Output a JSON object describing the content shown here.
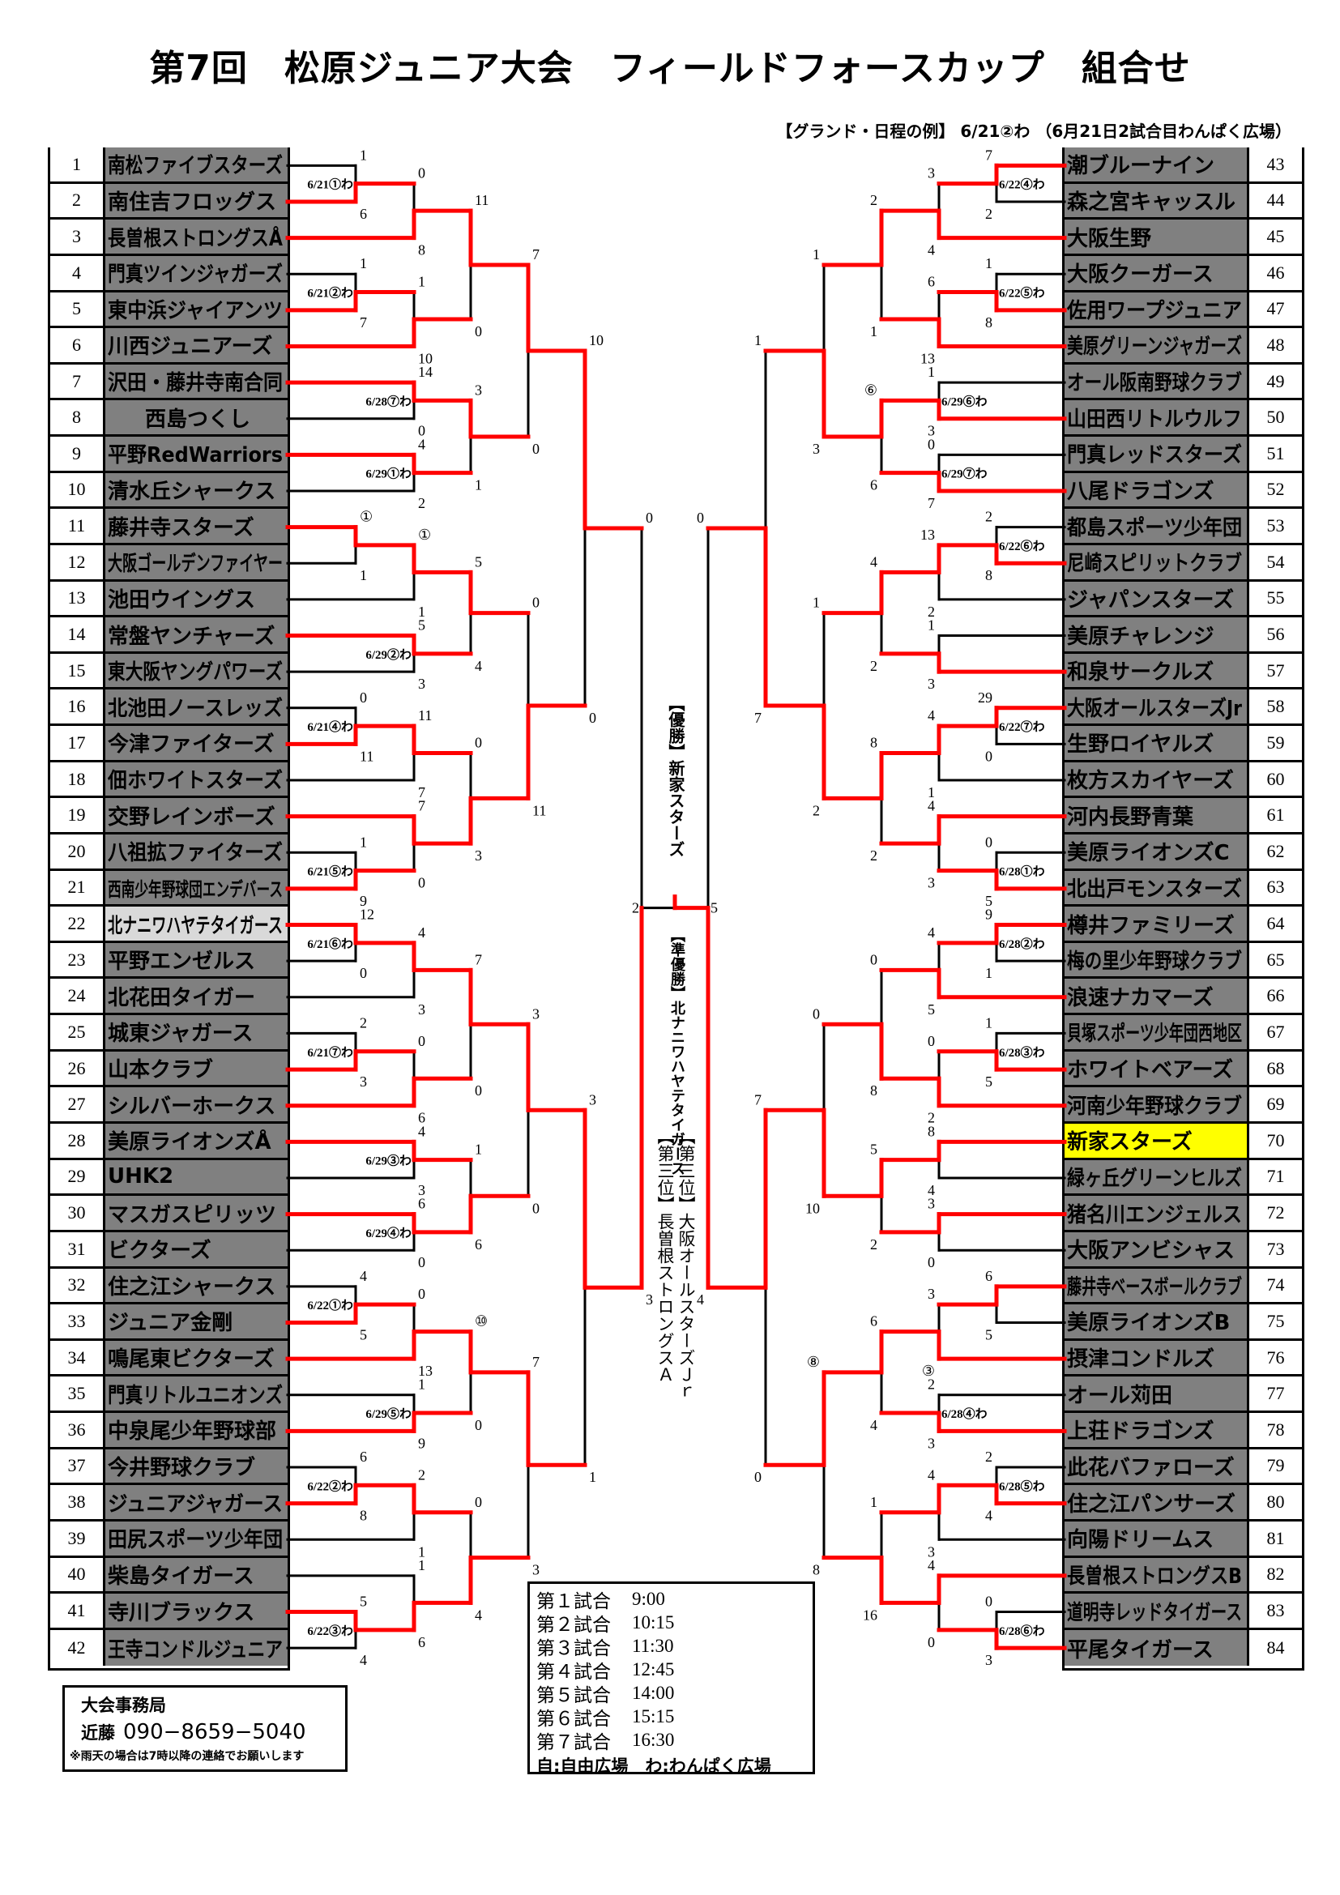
{
  "header": {
    "title": "第7回　松原ジュニア大会　フィールドフォースカップ　組合せ",
    "legend": "【グランド・日程の例】 6/21②わ （6月21日2試合目わんぱく広場）"
  },
  "colors": {
    "win_line": "#ff0000",
    "line": "#000000",
    "name_cell": "#808080",
    "champion_highlight": "#ffff00",
    "runner_up_highlight": "#d9d9d9"
  },
  "teams": [
    {
      "no": "1",
      "name": "南松ファイブスターズ"
    },
    {
      "no": "2",
      "name": "南住吉フロッグス"
    },
    {
      "no": "3",
      "name": "長曽根ストロングスÅ"
    },
    {
      "no": "4",
      "name": "門真ツインジャガーズ"
    },
    {
      "no": "5",
      "name": "東中浜ジャイアンツ"
    },
    {
      "no": "6",
      "name": "川西ジュニアーズ"
    },
    {
      "no": "7",
      "name": "沢田・藤井寺南合同"
    },
    {
      "no": "8",
      "name": "西島つくし",
      "center": true
    },
    {
      "no": "9",
      "name": "平野RedWarriors"
    },
    {
      "no": "10",
      "name": "清水丘シャークス"
    },
    {
      "no": "11",
      "name": "藤井寺スターズ"
    },
    {
      "no": "12",
      "name": "大阪ゴールデンファイヤー"
    },
    {
      "no": "13",
      "name": "池田ウイングス"
    },
    {
      "no": "14",
      "name": "常盤ヤンチャーズ"
    },
    {
      "no": "15",
      "name": "東大阪ヤングパワーズ"
    },
    {
      "no": "16",
      "name": "北池田ノースレッズ"
    },
    {
      "no": "17",
      "name": "今津ファイターズ"
    },
    {
      "no": "18",
      "name": "佃ホワイトスターズ"
    },
    {
      "no": "19",
      "name": "交野レインボーズ"
    },
    {
      "no": "20",
      "name": "八祖拡ファイターズ"
    },
    {
      "no": "21",
      "name": "西南少年野球団エンデバース"
    },
    {
      "no": "22",
      "name": "北ナニワハヤテタイガース",
      "highlight": "#d9d9d9"
    },
    {
      "no": "23",
      "name": "平野エンゼルス"
    },
    {
      "no": "24",
      "name": "北花田タイガー"
    },
    {
      "no": "25",
      "name": "城東ジャガース"
    },
    {
      "no": "26",
      "name": "山本クラブ"
    },
    {
      "no": "27",
      "name": "シルバーホークス"
    },
    {
      "no": "28",
      "name": "美原ライオンズÅ"
    },
    {
      "no": "29",
      "name": "UHK2"
    },
    {
      "no": "30",
      "name": "マスガスピリッツ"
    },
    {
      "no": "31",
      "name": "ビクターズ"
    },
    {
      "no": "32",
      "name": "住之江シャークス"
    },
    {
      "no": "33",
      "name": "ジュニア金剛"
    },
    {
      "no": "34",
      "name": "鳴尾東ビクターズ"
    },
    {
      "no": "35",
      "name": "門真リトルユニオンズ"
    },
    {
      "no": "36",
      "name": "中泉尾少年野球部"
    },
    {
      "no": "37",
      "name": "今井野球クラブ"
    },
    {
      "no": "38",
      "name": "ジュニアジャガース"
    },
    {
      "no": "39",
      "name": "田尻スポーツ少年団"
    },
    {
      "no": "40",
      "name": "柴島タイガース"
    },
    {
      "no": "41",
      "name": "寺川ブラックス"
    },
    {
      "no": "42",
      "name": "王寺コンドルジュニア"
    },
    {
      "no": "43",
      "name": "潮ブルーナイン"
    },
    {
      "no": "44",
      "name": "森之宮キャッスル"
    },
    {
      "no": "45",
      "name": "大阪生野"
    },
    {
      "no": "46",
      "name": "大阪クーガース"
    },
    {
      "no": "47",
      "name": "佐用ワープジュニア"
    },
    {
      "no": "48",
      "name": "美原グリーンジャガーズ"
    },
    {
      "no": "49",
      "name": "オール阪南野球クラブ"
    },
    {
      "no": "50",
      "name": "山田西リトルウルフ"
    },
    {
      "no": "51",
      "name": "門真レッドスターズ"
    },
    {
      "no": "52",
      "name": "八尾ドラゴンズ"
    },
    {
      "no": "53",
      "name": "都島スポーツ少年団"
    },
    {
      "no": "54",
      "name": "尼崎スピリットクラブ"
    },
    {
      "no": "55",
      "name": "ジャパンスターズ"
    },
    {
      "no": "56",
      "name": "美原チャレンジ"
    },
    {
      "no": "57",
      "name": "和泉サークルズ"
    },
    {
      "no": "58",
      "name": "大阪オールスターズJr"
    },
    {
      "no": "59",
      "name": "生野ロイヤルズ"
    },
    {
      "no": "60",
      "name": "枚方スカイヤーズ"
    },
    {
      "no": "61",
      "name": "河内長野青葉"
    },
    {
      "no": "62",
      "name": "美原ライオンズC"
    },
    {
      "no": "63",
      "name": "北出戸モンスターズ"
    },
    {
      "no": "64",
      "name": "樽井ファミリーズ"
    },
    {
      "no": "65",
      "name": "梅の里少年野球クラブ"
    },
    {
      "no": "66",
      "name": "浪速ナカマーズ"
    },
    {
      "no": "67",
      "name": "貝塚スポーツ少年団西地区"
    },
    {
      "no": "68",
      "name": "ホワイトベアーズ"
    },
    {
      "no": "69",
      "name": "河南少年野球クラブ"
    },
    {
      "no": "70",
      "name": "新家スターズ",
      "highlight": "#ffff00"
    },
    {
      "no": "71",
      "name": "緑ヶ丘グリーンヒルズ"
    },
    {
      "no": "72",
      "name": "猪名川エンジェルス"
    },
    {
      "no": "73",
      "name": "大阪アンビシャス"
    },
    {
      "no": "74",
      "name": "藤井寺ベースボールクラブ"
    },
    {
      "no": "75",
      "name": "美原ライオンズB"
    },
    {
      "no": "76",
      "name": "摂津コンドルズ"
    },
    {
      "no": "77",
      "name": "オール苅田"
    },
    {
      "no": "78",
      "name": "上荘ドラゴンズ"
    },
    {
      "no": "79",
      "name": "此花バファローズ"
    },
    {
      "no": "80",
      "name": "住之江パンサーズ"
    },
    {
      "no": "81",
      "name": "向陽ドリームス"
    },
    {
      "no": "82",
      "name": "長曽根ストロングスB"
    },
    {
      "no": "83",
      "name": "道明寺レッドタイガース"
    },
    {
      "no": "84",
      "name": "平尾タイガース"
    }
  ],
  "bracket": {
    "left": [
      {
        "id": "L1",
        "a": 1,
        "b": 2,
        "sa": "1",
        "sb": "6",
        "win": "b",
        "round": 1,
        "date": "6/21①わ"
      },
      {
        "id": "L2",
        "a": "L1",
        "b": 3,
        "sa": "0",
        "sb": "8",
        "win": "b",
        "round": 2
      },
      {
        "id": "L3",
        "a": 4,
        "b": 5,
        "sa": "1",
        "sb": "7",
        "win": "b",
        "round": 1,
        "date": "6/21②わ"
      },
      {
        "id": "L4",
        "a": "L3",
        "b": 6,
        "sa": "1",
        "sb": "10",
        "win": "b",
        "round": 2
      },
      {
        "id": "L5",
        "a": "L2",
        "b": "L4",
        "sa": "11",
        "sb": "0",
        "win": "a",
        "round": 3
      },
      {
        "id": "L6",
        "a": 7,
        "b": 8,
        "sa": "14",
        "sb": "0",
        "win": "a",
        "round": 2,
        "date": "6/28⑦わ"
      },
      {
        "id": "L7",
        "a": 9,
        "b": 10,
        "sa": "4",
        "sb": "2",
        "win": "a",
        "round": 2,
        "date": "6/29①わ"
      },
      {
        "id": "L8",
        "a": "L6",
        "b": "L7",
        "sa": "3",
        "sb": "1",
        "win": "a",
        "round": 3
      },
      {
        "id": "L9",
        "a": "L5",
        "b": "L8",
        "sa": "7",
        "sb": "0",
        "win": "a",
        "round": 4
      },
      {
        "id": "L10",
        "a": 11,
        "b": 12,
        "sa": "①",
        "sb": "1",
        "win": "a",
        "round": 1
      },
      {
        "id": "L11",
        "a": "L10",
        "b": 13,
        "sa": "①",
        "sb": "1",
        "win": "a",
        "round": 2
      },
      {
        "id": "L12",
        "a": 14,
        "b": 15,
        "sa": "5",
        "sb": "3",
        "win": "a",
        "round": 2,
        "date": "6/29②わ"
      },
      {
        "id": "L13",
        "a": "L11",
        "b": "L12",
        "sa": "5",
        "sb": "4",
        "win": "a",
        "round": 3
      },
      {
        "id": "L14",
        "a": 16,
        "b": 17,
        "sa": "0",
        "sb": "11",
        "win": "b",
        "round": 1,
        "date": "6/21④わ"
      },
      {
        "id": "L15",
        "a": "L14",
        "b": 18,
        "sa": "11",
        "sb": "7",
        "win": "a",
        "round": 2
      },
      {
        "id": "L16",
        "a": 20,
        "b": 21,
        "sa": "1",
        "sb": "9",
        "win": "b",
        "round": 1,
        "date": "6/21⑤わ"
      },
      {
        "id": "L17",
        "a": 19,
        "b": "L16",
        "sa": "7",
        "sb": "0",
        "win": "a",
        "round": 2
      },
      {
        "id": "L18",
        "a": "L15",
        "b": "L17",
        "sa": "0",
        "sb": "3",
        "win": "b",
        "round": 3
      },
      {
        "id": "L19",
        "a": "L13",
        "b": "L18",
        "sa": "0",
        "sb": "11",
        "win": "b",
        "round": 4
      },
      {
        "id": "L20",
        "a": "L9",
        "b": "L19",
        "sa": "10",
        "sb": "0",
        "win": "a",
        "round": 5
      },
      {
        "id": "L21",
        "a": 22,
        "b": 23,
        "sa": "12",
        "sb": "0",
        "win": "a",
        "round": 1,
        "date": "6/21⑥わ"
      },
      {
        "id": "L22",
        "a": "L21",
        "b": 24,
        "sa": "4",
        "sb": "3",
        "win": "a",
        "round": 2
      },
      {
        "id": "L23",
        "a": 25,
        "b": 26,
        "sa": "2",
        "sb": "3",
        "win": "b",
        "round": 1,
        "date": "6/21⑦わ"
      },
      {
        "id": "L24",
        "a": "L23",
        "b": 27,
        "sa": "0",
        "sb": "6",
        "win": "b",
        "round": 2
      },
      {
        "id": "L25",
        "a": "L22",
        "b": "L24",
        "sa": "7",
        "sb": "0",
        "win": "a",
        "round": 3
      },
      {
        "id": "L26",
        "a": 28,
        "b": 29,
        "sa": "4",
        "sb": "3",
        "win": "a",
        "round": 2,
        "date": "6/29③わ"
      },
      {
        "id": "L27",
        "a": 30,
        "b": 31,
        "sa": "6",
        "sb": "0",
        "win": "a",
        "round": 2,
        "date": "6/29④わ"
      },
      {
        "id": "L28",
        "a": "L26",
        "b": "L27",
        "sa": "1",
        "sb": "6",
        "win": "b",
        "round": 3
      },
      {
        "id": "L29",
        "a": "L25",
        "b": "L28",
        "sa": "3",
        "sb": "0",
        "win": "a",
        "round": 4
      },
      {
        "id": "L30",
        "a": 32,
        "b": 33,
        "sa": "4",
        "sb": "5",
        "win": "b",
        "round": 1,
        "date": "6/22①わ"
      },
      {
        "id": "L31",
        "a": "L30",
        "b": 34,
        "sa": "0",
        "sb": "13",
        "win": "b",
        "round": 2
      },
      {
        "id": "L32",
        "a": 35,
        "b": 36,
        "sa": "1",
        "sb": "9",
        "win": "b",
        "round": 2,
        "date": "6/29⑤わ"
      },
      {
        "id": "L33",
        "a": "L31",
        "b": "L32",
        "sa": "⑩",
        "sb": "0",
        "win": "a",
        "round": 3
      },
      {
        "id": "L34",
        "a": 37,
        "b": 38,
        "sa": "6",
        "sb": "8",
        "win": "b",
        "round": 1,
        "date": "6/22②わ"
      },
      {
        "id": "L35",
        "a": "L34",
        "b": 39,
        "sa": "2",
        "sb": "1",
        "win": "a",
        "round": 2
      },
      {
        "id": "L36",
        "a": 41,
        "b": 42,
        "sa": "5",
        "sb": "4",
        "win": "a",
        "round": 1,
        "date": "6/22③わ"
      },
      {
        "id": "L37",
        "a": 40,
        "b": "L36",
        "sa": "1",
        "sb": "6",
        "win": "b",
        "round": 2
      },
      {
        "id": "L38",
        "a": "L35",
        "b": "L37",
        "sa": "0",
        "sb": "4",
        "win": "b",
        "round": 3
      },
      {
        "id": "L39",
        "a": "L33",
        "b": "L38",
        "sa": "7",
        "sb": "3",
        "win": "a",
        "round": 4
      },
      {
        "id": "L40",
        "a": "L29",
        "b": "L39",
        "sa": "3",
        "sb": "1",
        "win": "a",
        "round": 5
      },
      {
        "id": "L41",
        "a": "L20",
        "b": "L40",
        "sa": "0",
        "sb": "3",
        "win": "b",
        "round": 6
      }
    ],
    "right": [
      {
        "id": "R1",
        "a": 43,
        "b": 44,
        "sa": "7",
        "sb": "2",
        "win": "a",
        "round": 1,
        "date": "6/22④わ"
      },
      {
        "id": "R2",
        "a": "R1",
        "b": 45,
        "sa": "3",
        "sb": "4",
        "win": "b",
        "round": 2
      },
      {
        "id": "R3",
        "a": 46,
        "b": 47,
        "sa": "1",
        "sb": "8",
        "win": "b",
        "round": 1,
        "date": "6/22⑤わ"
      },
      {
        "id": "R4",
        "a": "R3",
        "b": 48,
        "sa": "6",
        "sb": "13",
        "win": "b",
        "round": 2
      },
      {
        "id": "R5",
        "a": "R2",
        "b": "R4",
        "sa": "2",
        "sb": "1",
        "win": "a",
        "round": 3
      },
      {
        "id": "R6",
        "a": 49,
        "b": 50,
        "sa": "1",
        "sb": "3",
        "win": "b",
        "round": 2,
        "date": "6/29⑥わ"
      },
      {
        "id": "R7",
        "a": 51,
        "b": 52,
        "sa": "0",
        "sb": "7",
        "win": "b",
        "round": 2,
        "date": "6/29⑦わ"
      },
      {
        "id": "R8",
        "a": "R6",
        "b": "R7",
        "sa": "⑥",
        "sb": "6",
        "win": "a",
        "round": 3
      },
      {
        "id": "R9",
        "a": "R5",
        "b": "R8",
        "sa": "1",
        "sb": "3",
        "win": "b",
        "round": 4
      },
      {
        "id": "R10",
        "a": 53,
        "b": 54,
        "sa": "2",
        "sb": "8",
        "win": "b",
        "round": 1,
        "date": "6/22⑥わ"
      },
      {
        "id": "R11",
        "a": "R10",
        "b": 55,
        "sa": "13",
        "sb": "2",
        "win": "a",
        "round": 2
      },
      {
        "id": "R12",
        "a": 56,
        "b": 57,
        "sa": "1",
        "sb": "3",
        "win": "b",
        "round": 2
      },
      {
        "id": "R13",
        "a": "R11",
        "b": "R12",
        "sa": "4",
        "sb": "2",
        "win": "a",
        "round": 3
      },
      {
        "id": "R14",
        "a": 58,
        "b": 59,
        "sa": "29",
        "sb": "0",
        "win": "a",
        "round": 1,
        "date": "6/22⑦わ"
      },
      {
        "id": "R15",
        "a": "R14",
        "b": 60,
        "sa": "4",
        "sb": "1",
        "win": "a",
        "round": 2
      },
      {
        "id": "R16",
        "a": 62,
        "b": 63,
        "sa": "0",
        "sb": "5",
        "win": "b",
        "round": 1,
        "date": "6/28①わ"
      },
      {
        "id": "R17",
        "a": 61,
        "b": "R16",
        "sa": "4",
        "sb": "3",
        "win": "a",
        "round": 2
      },
      {
        "id": "R18",
        "a": "R15",
        "b": "R17",
        "sa": "8",
        "sb": "2",
        "win": "a",
        "round": 3
      },
      {
        "id": "R19",
        "a": "R13",
        "b": "R18",
        "sa": "1",
        "sb": "2",
        "win": "b",
        "round": 4
      },
      {
        "id": "R20",
        "a": "R9",
        "b": "R19",
        "sa": "1",
        "sb": "7",
        "win": "b",
        "round": 5
      },
      {
        "id": "R21",
        "a": 64,
        "b": 65,
        "sa": "9",
        "sb": "1",
        "win": "a",
        "round": 1,
        "date": "6/28②わ"
      },
      {
        "id": "R22",
        "a": "R21",
        "b": 66,
        "sa": "4",
        "sb": "5",
        "win": "b",
        "round": 2
      },
      {
        "id": "R23",
        "a": 67,
        "b": 68,
        "sa": "1",
        "sb": "5",
        "win": "b",
        "round": 1,
        "date": "6/28③わ"
      },
      {
        "id": "R24",
        "a": "R23",
        "b": 69,
        "sa": "0",
        "sb": "2",
        "win": "b",
        "round": 2
      },
      {
        "id": "R25",
        "a": "R22",
        "b": "R24",
        "sa": "0",
        "sb": "8",
        "win": "b",
        "round": 3
      },
      {
        "id": "R26",
        "a": 70,
        "b": 71,
        "sa": "8",
        "sb": "4",
        "win": "a",
        "round": 2
      },
      {
        "id": "R27",
        "a": 72,
        "b": 73,
        "sa": "3",
        "sb": "0",
        "win": "a",
        "round": 2
      },
      {
        "id": "R28",
        "a": "R26",
        "b": "R27",
        "sa": "5",
        "sb": "2",
        "win": "a",
        "round": 3
      },
      {
        "id": "R29",
        "a": "R25",
        "b": "R28",
        "sa": "0",
        "sb": "10",
        "win": "b",
        "round": 4
      },
      {
        "id": "R30",
        "a": 74,
        "b": 75,
        "sa": "6",
        "sb": "5",
        "win": "a",
        "round": 1
      },
      {
        "id": "R31",
        "a": "R30",
        "b": 76,
        "sa": "3",
        "sb": "③",
        "win": "b",
        "round": 2
      },
      {
        "id": "R32",
        "a": 77,
        "b": 78,
        "sa": "2",
        "sb": "3",
        "win": "b",
        "round": 2,
        "date": "6/28④わ"
      },
      {
        "id": "R33",
        "a": "R31",
        "b": "R32",
        "sa": "6",
        "sb": "4",
        "win": "a",
        "round": 3
      },
      {
        "id": "R34",
        "a": 79,
        "b": 80,
        "sa": "2",
        "sb": "4",
        "win": "b",
        "round": 1,
        "date": "6/28⑤わ"
      },
      {
        "id": "R35",
        "a": "R34",
        "b": 81,
        "sa": "4",
        "sb": "3",
        "win": "a",
        "round": 2
      },
      {
        "id": "R36",
        "a": 83,
        "b": 84,
        "sa": "0",
        "sb": "3",
        "win": "b",
        "round": 1,
        "date": "6/28⑥わ"
      },
      {
        "id": "R37",
        "a": 82,
        "b": "R36",
        "sa": "4",
        "sb": "0",
        "win": "a",
        "round": 2
      },
      {
        "id": "R38",
        "a": "R35",
        "b": "R37",
        "sa": "1",
        "sb": "16",
        "win": "b",
        "round": 3
      },
      {
        "id": "R39",
        "a": "R33",
        "b": "R38",
        "sa": "⑧",
        "sb": "8",
        "win": "a",
        "round": 4
      },
      {
        "id": "R40",
        "a": "R29",
        "b": "R39",
        "sa": "7",
        "sb": "0",
        "win": "a",
        "round": 5
      },
      {
        "id": "R41",
        "a": "R20",
        "b": "R40",
        "sa": "0",
        "sb": "4",
        "win": "b",
        "round": 6
      }
    ],
    "final": {
      "left_score": "2",
      "right_score": "5",
      "win": "right"
    }
  },
  "results": {
    "champion": "【優勝】新家スターズ",
    "runner_up": "【準優勝】北ナニワハヤテタイガース",
    "third_1": "【第三位】大阪オールスターズＪｒ",
    "third_2": "【第三位】長曽根ストロングスＡ"
  },
  "schedule": {
    "items": [
      {
        "label": "第１試合",
        "time": "9:00"
      },
      {
        "label": "第２試合",
        "time": "10:15"
      },
      {
        "label": "第３試合",
        "time": "11:30"
      },
      {
        "label": "第４試合",
        "time": "12:45"
      },
      {
        "label": "第５試合",
        "time": "14:00"
      },
      {
        "label": "第６試合",
        "time": "15:15"
      },
      {
        "label": "第７試合",
        "time": "16:30"
      }
    ],
    "venues": "自:自由広場　わ:わんぱく広場"
  },
  "office": {
    "title": "大会事務局",
    "contact_name": "近藤",
    "phone": "090−8659−5040",
    "note": "※雨天の場合は7時以降の連絡でお願いします"
  }
}
